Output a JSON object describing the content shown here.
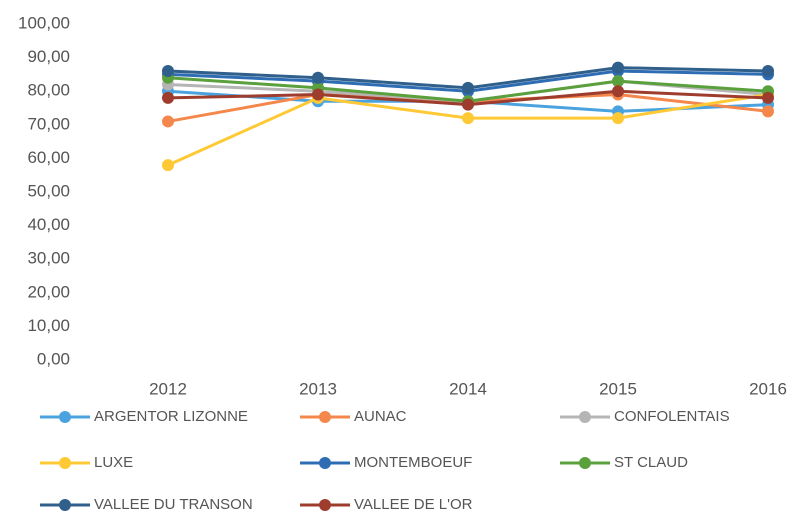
{
  "chart_data": {
    "type": "line",
    "x": [
      "2012",
      "2013",
      "2014",
      "2015",
      "2016"
    ],
    "ylim": [
      0,
      100
    ],
    "yticks": [
      {
        "value": 0,
        "label": "0,00"
      },
      {
        "value": 10,
        "label": "10,00"
      },
      {
        "value": 20,
        "label": "20,00"
      },
      {
        "value": 30,
        "label": "30,00"
      },
      {
        "value": 40,
        "label": "40,00"
      },
      {
        "value": 50,
        "label": "50,00"
      },
      {
        "value": 60,
        "label": "60,00"
      },
      {
        "value": 70,
        "label": "70,00"
      },
      {
        "value": 80,
        "label": "80,00"
      },
      {
        "value": 90,
        "label": "90,00"
      },
      {
        "value": 100,
        "label": "100,00"
      }
    ],
    "grid": false,
    "legend": "bottom",
    "series": [
      {
        "name": "ARGENTOR LIZONNE",
        "color": "#4aa3df",
        "values": [
          80,
          77,
          77,
          74,
          76
        ]
      },
      {
        "name": "AUNAC",
        "color": "#f4874b",
        "values": [
          71,
          79,
          77,
          79,
          74
        ]
      },
      {
        "name": "CONFOLENTAIS",
        "color": "#b5b5b5",
        "values": [
          82,
          80,
          77,
          83,
          79
        ]
      },
      {
        "name": "LUXE",
        "color": "#ffc936",
        "values": [
          58,
          78,
          72,
          72,
          79
        ]
      },
      {
        "name": "MONTEMBOEUF",
        "color": "#2e6db4",
        "values": [
          85,
          83,
          80,
          86,
          85
        ]
      },
      {
        "name": "ST CLAUD",
        "color": "#5aa03c",
        "values": [
          84,
          81,
          77,
          83,
          80
        ]
      },
      {
        "name": "VALLEE DU TRANSON",
        "color": "#2f5f8a",
        "values": [
          86,
          84,
          81,
          87,
          86
        ]
      },
      {
        "name": "VALLEE DE L'OR",
        "color": "#9e3d2e",
        "values": [
          78,
          79,
          76,
          80,
          78
        ]
      }
    ]
  }
}
